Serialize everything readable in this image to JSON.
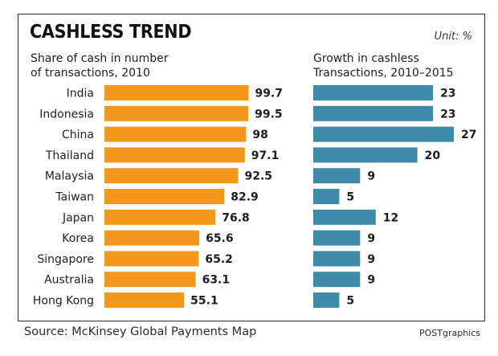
{
  "header": {
    "title": "CASHLESS TREND",
    "unit": "Unit: %"
  },
  "footer": {
    "source": "Source: McKinsey Global Payments Map",
    "credit": "POSTgraphics"
  },
  "colors": {
    "cash_bar": "#f4981d",
    "cashless_bar": "#3d8ba8",
    "text": "#1e1e1e"
  },
  "chart_data": [
    {
      "type": "bar",
      "orientation": "horizontal",
      "title": "Share of cash in number\nof transactions, 2010",
      "categories": [
        "India",
        "Indonesia",
        "China",
        "Thailand",
        "Malaysia",
        "Taiwan",
        "Japan",
        "Korea",
        "Singapore",
        "Australia",
        "Hong Kong"
      ],
      "values": [
        99.7,
        99.5,
        98,
        97.1,
        92.5,
        82.9,
        76.8,
        65.6,
        65.2,
        63.1,
        55.1
      ],
      "value_labels": [
        "99.7",
        "99.5",
        "98",
        "97.1",
        "92.5",
        "82.9",
        "76.8",
        "65.6",
        "65.2",
        "63.1",
        "55.1"
      ],
      "xlim": [
        0,
        100
      ],
      "grid": false,
      "color": "#f4981d"
    },
    {
      "type": "bar",
      "orientation": "horizontal",
      "title": "Growth in cashless\nTransactions, 2010–2015",
      "categories": [
        "India",
        "Indonesia",
        "China",
        "Thailand",
        "Malaysia",
        "Taiwan",
        "Japan",
        "Korea",
        "Singapore",
        "Australia",
        "Hong Kong"
      ],
      "values": [
        23,
        23,
        27,
        20,
        9,
        5,
        12,
        9,
        9,
        9,
        5
      ],
      "value_labels": [
        "23",
        "23",
        "27",
        "20",
        "9",
        "5",
        "12",
        "9",
        "9",
        "9",
        "5"
      ],
      "xlim": [
        0,
        27
      ],
      "grid": false,
      "color": "#3d8ba8"
    }
  ]
}
